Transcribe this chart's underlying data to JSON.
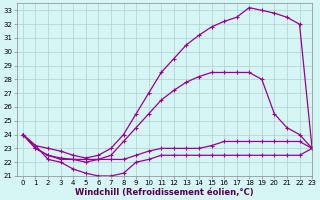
{
  "xlabel": "Windchill (Refroidissement éolien,°C)",
  "background_color": "#d6f5f5",
  "line_color": "#990099",
  "grid_color": "#b0d0d0",
  "xlim": [
    -0.5,
    23
  ],
  "ylim": [
    21,
    33.5
  ],
  "xticks": [
    0,
    1,
    2,
    3,
    4,
    5,
    6,
    7,
    8,
    9,
    10,
    11,
    12,
    13,
    14,
    15,
    16,
    17,
    18,
    19,
    20,
    21,
    22,
    23
  ],
  "yticks": [
    21,
    22,
    23,
    24,
    25,
    26,
    27,
    28,
    29,
    30,
    31,
    32,
    33
  ],
  "series": [
    {
      "x": [
        0,
        1,
        2,
        3,
        4,
        5,
        6,
        7,
        8,
        9,
        10,
        11,
        12,
        13,
        14,
        15,
        16,
        17,
        18,
        19,
        20,
        21,
        22,
        23
      ],
      "y": [
        24.0,
        23.2,
        23.0,
        22.8,
        22.5,
        22.3,
        22.5,
        23.0,
        24.0,
        25.5,
        27.0,
        28.5,
        29.5,
        30.5,
        31.2,
        31.8,
        32.2,
        32.5,
        33.2,
        33.0,
        32.8,
        32.5,
        32.0,
        23.0
      ]
    },
    {
      "x": [
        0,
        1,
        2,
        3,
        4,
        5,
        6,
        7,
        8,
        9,
        10,
        11,
        12,
        13,
        14,
        15,
        16,
        17,
        18,
        19,
        20,
        21,
        22,
        23
      ],
      "y": [
        24.0,
        23.0,
        22.5,
        22.3,
        22.2,
        22.0,
        22.2,
        22.5,
        23.5,
        24.5,
        25.5,
        26.5,
        27.2,
        27.8,
        28.2,
        28.5,
        28.5,
        28.5,
        28.5,
        28.0,
        25.5,
        24.5,
        24.0,
        23.0
      ]
    },
    {
      "x": [
        0,
        1,
        2,
        3,
        4,
        5,
        6,
        7,
        8,
        9,
        10,
        11,
        12,
        13,
        14,
        15,
        16,
        17,
        18,
        19,
        20,
        21,
        22,
        23
      ],
      "y": [
        24.0,
        23.0,
        22.5,
        22.2,
        22.2,
        22.2,
        22.2,
        22.2,
        22.2,
        22.5,
        22.8,
        23.0,
        23.0,
        23.0,
        23.0,
        23.2,
        23.5,
        23.5,
        23.5,
        23.5,
        23.5,
        23.5,
        23.5,
        23.0
      ]
    },
    {
      "x": [
        0,
        1,
        2,
        3,
        4,
        5,
        6,
        7,
        8,
        9,
        10,
        11,
        12,
        13,
        14,
        15,
        16,
        17,
        18,
        19,
        20,
        21,
        22,
        23
      ],
      "y": [
        24.0,
        23.2,
        22.2,
        22.0,
        21.5,
        21.2,
        21.0,
        21.0,
        21.2,
        22.0,
        22.2,
        22.5,
        22.5,
        22.5,
        22.5,
        22.5,
        22.5,
        22.5,
        22.5,
        22.5,
        22.5,
        22.5,
        22.5,
        23.0
      ]
    }
  ],
  "marker": "+",
  "markersize": 3.5,
  "linewidth": 0.9,
  "tick_fontsize": 5.0,
  "label_fontsize": 6.0
}
